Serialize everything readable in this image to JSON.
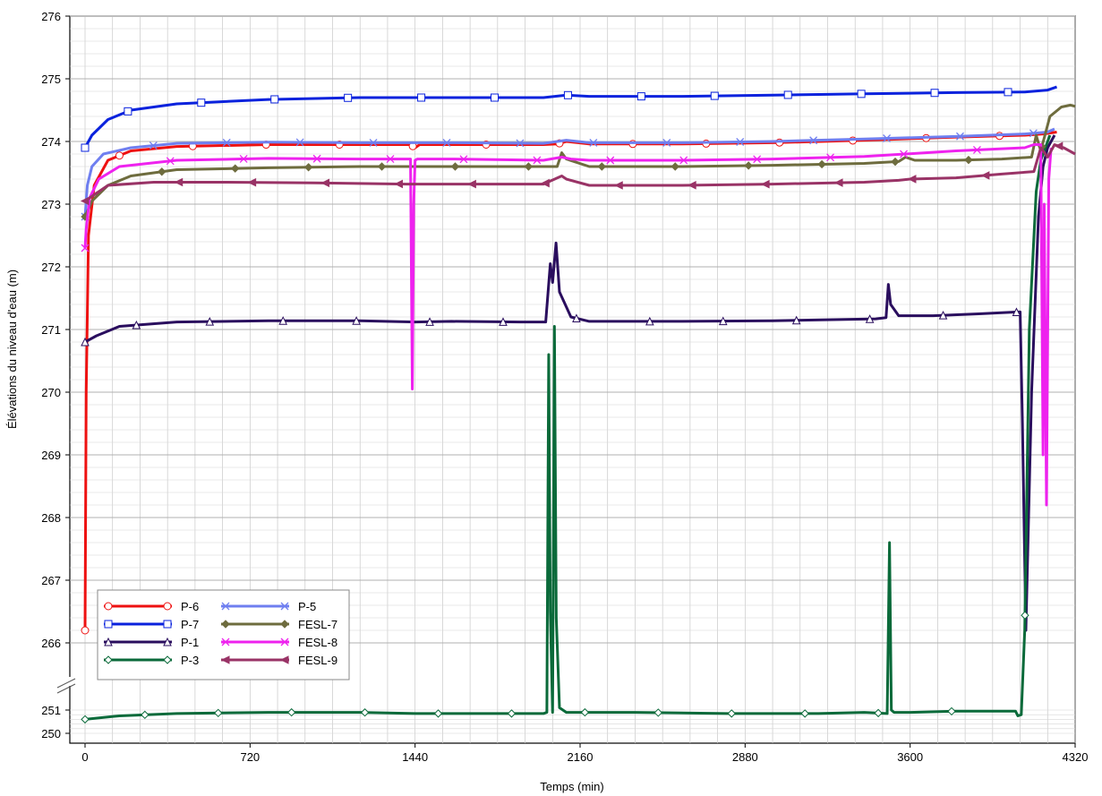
{
  "chart_data": {
    "type": "line",
    "title": "",
    "xlabel": "Temps (min)",
    "ylabel": "Élévations du niveau d'eau (m)",
    "xlim": [
      0,
      4320
    ],
    "x_ticks": [
      0,
      720,
      1440,
      2160,
      2880,
      3600,
      4320
    ],
    "y_ticks_upper": [
      266,
      267,
      268,
      269,
      270,
      271,
      272,
      273,
      274,
      275,
      276
    ],
    "y_ticks_lower": [
      250,
      251
    ],
    "y_axis_break": "between 251 and 266",
    "grid": true,
    "legend_position": "bottom-left",
    "colors": {
      "P-6": "#ee1111",
      "P-7": "#0a22dd",
      "P-1": "#2a0e5e",
      "P-3": "#0a6a3a",
      "P-5": "#6f7ff0",
      "FESL-7": "#6e6c3e",
      "FESL-8": "#ee22ee",
      "FESL-9": "#993366"
    },
    "series": [
      {
        "name": "P-6",
        "marker": "circle",
        "x": [
          0,
          5,
          15,
          40,
          100,
          200,
          400,
          800,
          1200,
          1420,
          1440,
          1460,
          1600,
          2000,
          2060,
          2100,
          2200,
          2600,
          3000,
          3400,
          3800,
          4100,
          4180,
          4240
        ],
        "y": [
          266.2,
          270,
          272.5,
          273.3,
          273.7,
          273.85,
          273.92,
          273.95,
          273.95,
          273.95,
          273.9,
          273.95,
          273.95,
          273.95,
          273.96,
          274.0,
          273.96,
          273.96,
          273.98,
          274.02,
          274.07,
          274.1,
          274.12,
          274.15
        ]
      },
      {
        "name": "P-7",
        "marker": "square",
        "x": [
          0,
          30,
          100,
          200,
          400,
          800,
          1200,
          1440,
          1600,
          2000,
          2100,
          2200,
          2600,
          3000,
          3400,
          3800,
          4100,
          4200,
          4240
        ],
        "y": [
          273.9,
          274.1,
          274.35,
          274.5,
          274.6,
          274.67,
          274.7,
          274.7,
          274.7,
          274.7,
          274.74,
          274.72,
          274.72,
          274.74,
          274.76,
          274.78,
          274.79,
          274.82,
          274.87
        ]
      },
      {
        "name": "P-1",
        "marker": "triangle",
        "x": [
          0,
          50,
          150,
          400,
          800,
          1200,
          1440,
          1600,
          1900,
          2010,
          2030,
          2040,
          2055,
          2070,
          2120,
          2200,
          2600,
          3000,
          3450,
          3495,
          3505,
          3515,
          3550,
          3700,
          3900,
          4070,
          4080,
          4090,
          4105,
          4130,
          4160,
          4180,
          4200,
          4230
        ],
        "y": [
          270.8,
          270.9,
          271.05,
          271.12,
          271.14,
          271.14,
          271.12,
          271.13,
          271.12,
          271.12,
          272.05,
          271.75,
          272.38,
          271.6,
          271.2,
          271.13,
          271.13,
          271.14,
          271.17,
          271.19,
          271.72,
          271.4,
          271.22,
          271.22,
          271.25,
          271.28,
          271.28,
          269.5,
          266.2,
          270,
          272.8,
          273.6,
          273.9,
          274.1
        ]
      },
      {
        "name": "P-3",
        "marker": "diamond",
        "x": [
          0,
          150,
          400,
          800,
          1200,
          1440,
          1800,
          2000,
          2015,
          2023,
          2030,
          2040,
          2048,
          2056,
          2070,
          2100,
          2400,
          2800,
          3200,
          3400,
          3500,
          3510,
          3518,
          3530,
          3600,
          3800,
          4060,
          4070,
          4085,
          4100,
          4120,
          4150,
          4170,
          4190,
          4210
        ],
        "y": [
          250.6,
          250.75,
          250.85,
          250.9,
          250.9,
          250.85,
          250.85,
          250.85,
          250.9,
          270.6,
          266.5,
          250.9,
          271.05,
          266.4,
          251.1,
          250.9,
          250.9,
          250.85,
          250.85,
          250.9,
          250.85,
          267.6,
          251.0,
          250.9,
          250.9,
          250.95,
          250.95,
          250.75,
          250.8,
          266.2,
          271.0,
          273.2,
          273.7,
          273.9,
          274.1
        ]
      },
      {
        "name": "P-5",
        "marker": "x",
        "x": [
          0,
          10,
          30,
          80,
          200,
          400,
          800,
          1200,
          1440,
          1600,
          2000,
          2100,
          2200,
          2600,
          3000,
          3400,
          3800,
          4100,
          4200,
          4230
        ],
        "y": [
          272.8,
          273.3,
          273.6,
          273.8,
          273.9,
          273.97,
          273.99,
          273.98,
          273.98,
          273.98,
          273.97,
          274.02,
          273.98,
          273.98,
          274.0,
          274.04,
          274.08,
          274.12,
          274.15,
          274.2
        ]
      },
      {
        "name": "FESL-7",
        "marker": "diamond-filled",
        "x": [
          0,
          30,
          100,
          200,
          400,
          800,
          1200,
          1440,
          1600,
          2000,
          2060,
          2080,
          2100,
          2200,
          2600,
          3000,
          3400,
          3550,
          3580,
          3620,
          3800,
          4000,
          4130,
          4150,
          4170,
          4210,
          4260,
          4300,
          4320
        ],
        "y": [
          272.8,
          273.05,
          273.3,
          273.45,
          273.55,
          273.58,
          273.6,
          273.6,
          273.6,
          273.6,
          273.6,
          273.82,
          273.72,
          273.6,
          273.6,
          273.62,
          273.65,
          273.68,
          273.75,
          273.7,
          273.7,
          273.72,
          273.75,
          274.1,
          273.85,
          274.4,
          274.55,
          274.58,
          274.56
        ]
      },
      {
        "name": "FESL-8",
        "marker": "x",
        "x": [
          0,
          5,
          20,
          60,
          150,
          400,
          800,
          1200,
          1420,
          1428,
          1434,
          1440,
          1450,
          1600,
          2000,
          2080,
          2120,
          2200,
          2600,
          3000,
          3400,
          3800,
          4100,
          4140,
          4170,
          4180,
          4185,
          4195,
          4205,
          4215
        ],
        "y": [
          272.3,
          272.6,
          273.1,
          273.4,
          273.6,
          273.7,
          273.73,
          273.72,
          273.72,
          270.05,
          273.0,
          273.7,
          273.72,
          273.72,
          273.7,
          273.75,
          273.72,
          273.7,
          273.7,
          273.72,
          273.76,
          273.85,
          273.9,
          273.95,
          273.95,
          269.0,
          273.0,
          268.2,
          273.4,
          273.9
        ]
      },
      {
        "name": "FESL-9",
        "marker": "triangle-left",
        "x": [
          0,
          100,
          300,
          600,
          1000,
          1400,
          1800,
          2000,
          2080,
          2100,
          2200,
          2600,
          3000,
          3400,
          3550,
          3600,
          3800,
          4000,
          4140,
          4170,
          4200,
          4230,
          4270,
          4320
        ],
        "y": [
          273.05,
          273.3,
          273.35,
          273.35,
          273.34,
          273.32,
          273.32,
          273.32,
          273.45,
          273.4,
          273.3,
          273.3,
          273.32,
          273.35,
          273.38,
          273.4,
          273.42,
          273.48,
          273.52,
          273.9,
          273.75,
          273.95,
          273.9,
          273.8
        ]
      }
    ]
  }
}
